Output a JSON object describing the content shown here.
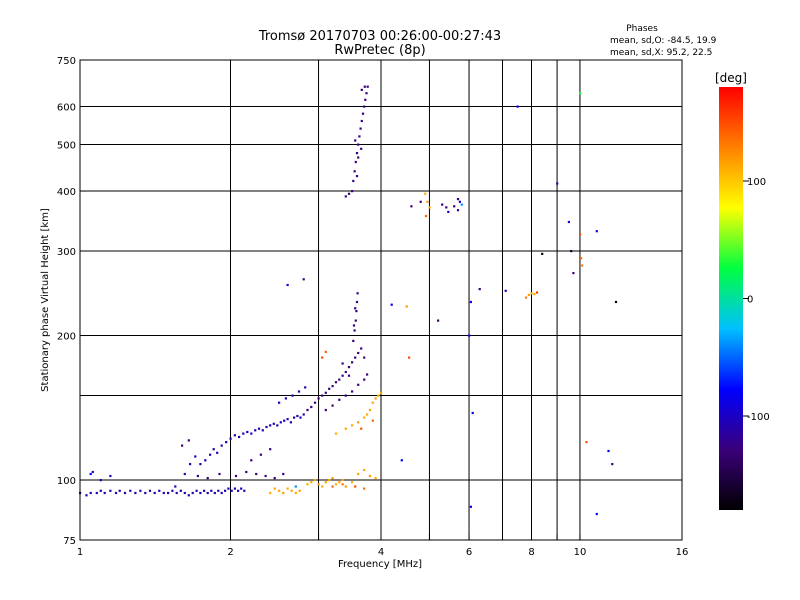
{
  "chart_data": {
    "type": "scatter",
    "title": "Tromsø 20170703 00:26:00-00:27:43",
    "subtitle": "RwPretec (8p)",
    "xlabel": "Frequency [MHz]",
    "ylabel": "Stationary phase Virtual Height [km]",
    "x_scale": "log",
    "y_scale": "log",
    "xlim": [
      1,
      16
    ],
    "ylim": [
      75,
      750
    ],
    "x_ticks": [
      1,
      2,
      4,
      6,
      8,
      10,
      16
    ],
    "x_ticks_unlabeled": [
      3,
      5,
      7,
      9
    ],
    "y_ticks": [
      75,
      100,
      200,
      300,
      400,
      500,
      600,
      750
    ],
    "y_ticks_unlabeled": [
      150
    ],
    "grid": true,
    "stats": {
      "title": "Phases",
      "line1": "mean, sd,O: -84.5, 19.9",
      "line2": "mean, sd,X:  95.2, 22.5"
    },
    "colorbar": {
      "label": "[deg]",
      "min": -180,
      "max": 180,
      "ticks": [
        100,
        0,
        -100
      ],
      "colors": [
        "#000000",
        "#3a007a",
        "#0000ff",
        "#00c0ff",
        "#00ff40",
        "#ffff00",
        "#ff8000",
        "#ff0000"
      ]
    },
    "series": [
      {
        "values": [
          [
            1.0,
            94,
            -110
          ],
          [
            1.03,
            93,
            -105
          ],
          [
            1.05,
            94,
            -108
          ],
          [
            1.08,
            94,
            -102
          ],
          [
            1.1,
            95,
            -110
          ],
          [
            1.12,
            94,
            -105
          ],
          [
            1.15,
            95,
            -108
          ],
          [
            1.18,
            94,
            -104
          ],
          [
            1.2,
            95,
            -110
          ],
          [
            1.23,
            94,
            -106
          ],
          [
            1.26,
            95,
            -103
          ],
          [
            1.29,
            94,
            -108
          ],
          [
            1.32,
            95,
            -105
          ],
          [
            1.35,
            94,
            -110
          ],
          [
            1.38,
            95,
            -104
          ],
          [
            1.41,
            94,
            -108
          ],
          [
            1.44,
            95,
            -106
          ],
          [
            1.47,
            94,
            -102
          ],
          [
            1.5,
            94,
            -108
          ],
          [
            1.53,
            95,
            -105
          ],
          [
            1.56,
            94,
            -110
          ],
          [
            1.59,
            95,
            -104
          ],
          [
            1.62,
            94,
            -107
          ],
          [
            1.65,
            93,
            -105
          ],
          [
            1.68,
            94,
            -110
          ],
          [
            1.71,
            95,
            -103
          ],
          [
            1.74,
            94,
            -108
          ],
          [
            1.77,
            95,
            -105
          ],
          [
            1.8,
            94,
            -110
          ],
          [
            1.83,
            95,
            -104
          ],
          [
            1.86,
            94,
            -108
          ],
          [
            1.89,
            95,
            -106
          ],
          [
            1.92,
            94,
            -103
          ],
          [
            1.95,
            95,
            -108
          ],
          [
            1.98,
            96,
            -105
          ],
          [
            2.01,
            95,
            -110
          ],
          [
            2.04,
            96,
            -104
          ],
          [
            2.07,
            95,
            -108
          ],
          [
            2.1,
            96,
            -106
          ],
          [
            2.13,
            95,
            -110
          ],
          [
            1.06,
            104,
            -102
          ],
          [
            1.1,
            100,
            -110
          ],
          [
            1.15,
            102,
            -105
          ],
          [
            1.55,
            97,
            -104
          ],
          [
            1.62,
            103,
            -108
          ],
          [
            1.66,
            108,
            -106
          ],
          [
            1.7,
            112,
            -104
          ],
          [
            1.74,
            108,
            -102
          ],
          [
            1.78,
            110,
            -106
          ],
          [
            1.82,
            113,
            -104
          ],
          [
            1.85,
            116,
            -108
          ],
          [
            1.88,
            114,
            -105
          ],
          [
            1.92,
            118,
            -106
          ],
          [
            1.96,
            120,
            -104
          ],
          [
            2.0,
            122,
            -108
          ],
          [
            2.04,
            124,
            -105
          ],
          [
            2.08,
            123,
            -110
          ],
          [
            2.12,
            125,
            -104
          ],
          [
            2.16,
            126,
            -108
          ],
          [
            2.2,
            125,
            -106
          ],
          [
            2.24,
            127,
            -103
          ],
          [
            2.28,
            128,
            -108
          ],
          [
            2.32,
            127,
            -105
          ],
          [
            2.36,
            129,
            -110
          ],
          [
            2.4,
            130,
            -104
          ],
          [
            2.44,
            131,
            -108
          ],
          [
            2.48,
            130,
            -106
          ],
          [
            2.52,
            132,
            -102
          ],
          [
            2.56,
            133,
            -108
          ],
          [
            2.6,
            134,
            -105
          ],
          [
            2.64,
            132,
            -110
          ],
          [
            2.68,
            135,
            -104
          ],
          [
            2.72,
            136,
            -108
          ],
          [
            2.76,
            135,
            -106
          ],
          [
            2.8,
            137,
            -103
          ],
          [
            2.5,
            145,
            -102
          ],
          [
            2.58,
            148,
            -106
          ],
          [
            2.66,
            150,
            -104
          ],
          [
            2.74,
            153,
            -108
          ],
          [
            2.82,
            156,
            -105
          ],
          [
            1.72,
            102,
            -125
          ],
          [
            1.8,
            101,
            -130
          ],
          [
            1.9,
            103,
            -128
          ],
          [
            2.05,
            102,
            -126
          ],
          [
            2.15,
            104,
            -130
          ],
          [
            2.25,
            103,
            -128
          ],
          [
            2.35,
            102,
            -125
          ],
          [
            2.45,
            101,
            -130
          ],
          [
            2.55,
            103,
            -128
          ],
          [
            1.6,
            118,
            -130
          ],
          [
            1.65,
            121,
            -132
          ],
          [
            2.2,
            110,
            -128
          ],
          [
            2.3,
            113,
            -130
          ],
          [
            2.4,
            116,
            -126
          ],
          [
            2.85,
            140,
            -128
          ],
          [
            2.9,
            142,
            -126
          ],
          [
            2.95,
            145,
            -130
          ],
          [
            3.0,
            148,
            -128
          ],
          [
            3.05,
            150,
            -125
          ],
          [
            3.1,
            152,
            -130
          ],
          [
            3.15,
            155,
            -128
          ],
          [
            3.2,
            157,
            -126
          ],
          [
            3.25,
            160,
            -130
          ],
          [
            3.3,
            162,
            -128
          ],
          [
            3.35,
            165,
            -125
          ],
          [
            3.4,
            168,
            -130
          ],
          [
            3.45,
            172,
            -128
          ],
          [
            3.5,
            176,
            -126
          ],
          [
            3.55,
            180,
            -130
          ],
          [
            3.6,
            184,
            -128
          ],
          [
            3.65,
            188,
            -125
          ],
          [
            3.7,
            180,
            -130
          ],
          [
            3.52,
            195,
            -128
          ],
          [
            3.54,
            205,
            -126
          ],
          [
            3.56,
            215,
            -130
          ],
          [
            3.57,
            225,
            -128
          ],
          [
            3.58,
            235,
            -125
          ],
          [
            3.59,
            245,
            -130
          ],
          [
            3.55,
            228,
            -128
          ],
          [
            3.53,
            210,
            -126
          ],
          [
            3.1,
            140,
            -130
          ],
          [
            3.2,
            143,
            -128
          ],
          [
            3.3,
            147,
            -126
          ],
          [
            3.4,
            150,
            -130
          ],
          [
            3.5,
            153,
            -128
          ],
          [
            3.6,
            158,
            -125
          ],
          [
            3.7,
            162,
            -130
          ],
          [
            3.75,
            166,
            -128
          ],
          [
            3.45,
            165,
            -126
          ],
          [
            3.35,
            175,
            -130
          ],
          [
            3.5,
            400,
            -128
          ],
          [
            3.52,
            420,
            -126
          ],
          [
            3.54,
            440,
            -130
          ],
          [
            3.56,
            460,
            -128
          ],
          [
            3.58,
            480,
            -125
          ],
          [
            3.6,
            500,
            -130
          ],
          [
            3.62,
            520,
            -128
          ],
          [
            3.64,
            540,
            -126
          ],
          [
            3.66,
            560,
            -130
          ],
          [
            3.68,
            580,
            -128
          ],
          [
            3.7,
            600,
            -125
          ],
          [
            3.72,
            620,
            -130
          ],
          [
            3.74,
            640,
            -128
          ],
          [
            3.76,
            660,
            -126
          ],
          [
            3.66,
            650,
            -130
          ],
          [
            3.71,
            660,
            -128
          ],
          [
            3.55,
            510,
            -126
          ],
          [
            3.6,
            470,
            -130
          ],
          [
            3.65,
            490,
            -128
          ],
          [
            3.58,
            430,
            -125
          ],
          [
            3.45,
            395,
            -130
          ],
          [
            3.4,
            390,
            -128
          ],
          [
            4.6,
            372,
            -130
          ],
          [
            4.8,
            380,
            -128
          ],
          [
            5.3,
            375,
            -126
          ],
          [
            5.4,
            370,
            -130
          ],
          [
            5.6,
            372,
            -128
          ],
          [
            5.7,
            365,
            -125
          ],
          [
            5.75,
            380,
            -100
          ],
          [
            5.45,
            362,
            -105
          ],
          [
            2.4,
            94,
            110
          ],
          [
            2.45,
            96,
            115
          ],
          [
            2.5,
            95,
            112
          ],
          [
            2.55,
            94,
            118
          ],
          [
            2.6,
            96,
            110
          ],
          [
            2.65,
            95,
            115
          ],
          [
            2.7,
            94,
            112
          ],
          [
            2.75,
            95,
            118
          ],
          [
            2.85,
            98,
            110
          ],
          [
            2.9,
            99,
            115
          ],
          [
            2.95,
            100,
            112
          ],
          [
            3.0,
            98,
            118
          ],
          [
            3.05,
            97,
            110
          ],
          [
            3.1,
            99,
            115
          ],
          [
            3.15,
            100,
            112
          ],
          [
            3.2,
            101,
            118
          ],
          [
            3.25,
            98,
            110
          ],
          [
            3.3,
            99,
            115
          ],
          [
            3.35,
            100,
            112
          ],
          [
            3.4,
            97,
            118
          ],
          [
            3.5,
            99,
            110
          ],
          [
            3.6,
            103,
            115
          ],
          [
            3.7,
            105,
            112
          ],
          [
            3.8,
            102,
            118
          ],
          [
            3.9,
            101,
            110
          ],
          [
            3.2,
            97,
            140
          ],
          [
            3.35,
            98,
            135
          ],
          [
            3.55,
            97,
            150
          ],
          [
            3.7,
            96,
            138
          ],
          [
            3.25,
            125,
            110
          ],
          [
            3.4,
            128,
            115
          ],
          [
            3.5,
            130,
            112
          ],
          [
            3.6,
            132,
            118
          ],
          [
            3.7,
            135,
            110
          ],
          [
            3.8,
            140,
            115
          ],
          [
            3.85,
            145,
            112
          ],
          [
            3.9,
            148,
            118
          ],
          [
            3.95,
            150,
            110
          ],
          [
            4.0,
            152,
            115
          ],
          [
            3.75,
            137,
            112
          ],
          [
            3.65,
            128,
            145
          ],
          [
            3.85,
            133,
            140
          ],
          [
            4.9,
            395,
            110
          ],
          [
            4.95,
            380,
            115
          ],
          [
            5.0,
            370,
            112
          ],
          [
            4.92,
            355,
            140
          ],
          [
            8.0,
            245,
            110
          ],
          [
            7.9,
            243,
            118
          ],
          [
            8.1,
            244,
            112
          ],
          [
            7.8,
            240,
            130
          ],
          [
            8.2,
            246,
            160
          ],
          [
            4.5,
            230,
            120
          ],
          [
            4.55,
            180,
            150
          ],
          [
            3.05,
            180,
            150
          ],
          [
            3.1,
            185,
            140
          ],
          [
            2.7,
            97,
            -40
          ],
          [
            1.05,
            103,
            -80
          ],
          [
            2.6,
            255,
            -90
          ],
          [
            2.8,
            262,
            -125
          ],
          [
            4.4,
            110,
            -80
          ],
          [
            4.2,
            232,
            -85
          ],
          [
            5.2,
            215,
            -130
          ],
          [
            6.05,
            235,
            -90
          ],
          [
            6.3,
            250,
            -125
          ],
          [
            6.0,
            200,
            -85
          ],
          [
            6.1,
            138,
            -80
          ],
          [
            6.05,
            88,
            -85
          ],
          [
            7.1,
            248,
            -100
          ],
          [
            7.5,
            600,
            -85
          ],
          [
            9.0,
            415,
            -120
          ],
          [
            9.5,
            345,
            -95
          ],
          [
            9.6,
            300,
            -160
          ],
          [
            9.7,
            270,
            -125
          ],
          [
            10.0,
            325,
            150
          ],
          [
            10.05,
            290,
            140
          ],
          [
            10.1,
            280,
            130
          ],
          [
            10.0,
            640,
            30
          ],
          [
            10.3,
            120,
            150
          ],
          [
            10.8,
            330,
            -90
          ],
          [
            10.8,
            85,
            -80
          ],
          [
            11.4,
            115,
            -80
          ],
          [
            11.6,
            108,
            -125
          ],
          [
            11.8,
            235,
            -170
          ],
          [
            8.4,
            296,
            -170
          ],
          [
            5.8,
            375,
            -40
          ],
          [
            5.7,
            385,
            -130
          ]
        ]
      }
    ]
  }
}
